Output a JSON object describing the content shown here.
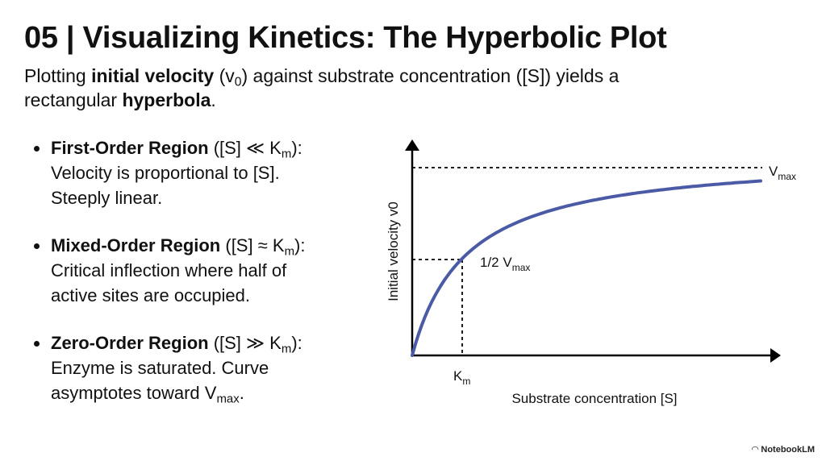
{
  "header": {
    "title": "05 | Visualizing Kinetics: The Hyperbolic Plot",
    "subtitle": {
      "line1": [
        "Plotting ",
        "initial velocity",
        " (v",
        "0",
        ") against substrate concentration ([S]) yields a"
      ],
      "line2": [
        "rectangular ",
        "hyperbola",
        "."
      ]
    }
  },
  "bullets": [
    {
      "term": "First-Order Region",
      "condition": [
        " ([S] ≪ K",
        "m",
        "):"
      ],
      "lines": [
        "Velocity is proportional to [S].",
        "Steeply linear."
      ]
    },
    {
      "term": "Mixed-Order Region",
      "condition": [
        " ([S] ≈ K",
        "m",
        "):"
      ],
      "lines": [
        "Critical inflection where half of",
        "active sites are occupied."
      ]
    },
    {
      "term": "Zero-Order Region",
      "condition": [
        " ([S] ≫ K",
        "m",
        "):"
      ],
      "lines": [
        "Enzyme is saturated. Curve",
        "asymptotes toward V"
      ],
      "line_end": [
        "max",
        "."
      ]
    }
  ],
  "diagram": {
    "y_axis_label": "Initial velocity v0",
    "x_axis_label": "Substrate concentration [S]",
    "vmax_label": [
      "V",
      "max"
    ],
    "half_vmax_label": [
      "1/2 V",
      "max"
    ],
    "km_label": [
      "K",
      "m"
    ]
  },
  "footer": {
    "brand": "NotebookLM"
  }
}
